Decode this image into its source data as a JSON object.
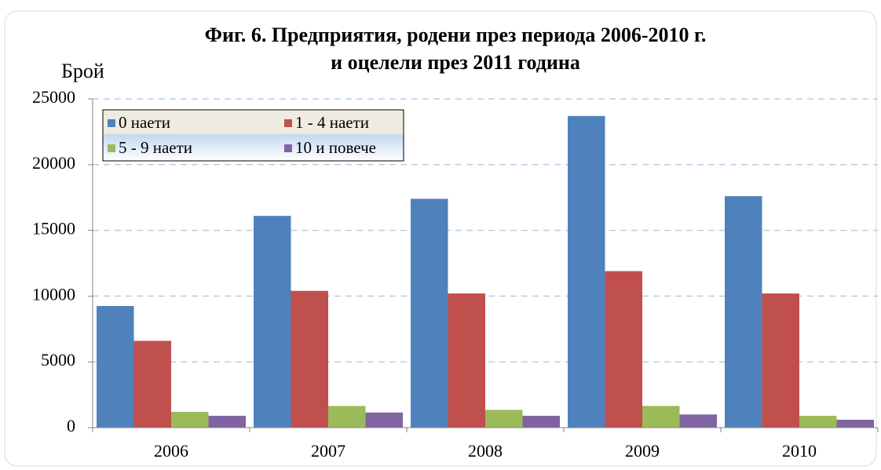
{
  "chart_data": {
    "type": "bar",
    "title": "Фиг. 6. Предприятия, родени през периода 2006-2010 г.",
    "subtitle": "и оцелели през 2011 година",
    "y_label": "Брой",
    "categories": [
      "2006",
      "2007",
      "2008",
      "2009",
      "2010"
    ],
    "series": [
      {
        "name": "0 наети",
        "color": "#4f81bd",
        "values": [
          9250,
          16100,
          17400,
          23700,
          17600
        ]
      },
      {
        "name": "1 - 4 наети",
        "color": "#c0504d",
        "values": [
          6600,
          10400,
          10200,
          11900,
          10200
        ]
      },
      {
        "name": "5 - 9 наети",
        "color": "#9bbb59",
        "values": [
          1200,
          1650,
          1350,
          1650,
          900
        ]
      },
      {
        "name": "10 и повече",
        "color": "#8064a2",
        "values": [
          900,
          1150,
          900,
          1000,
          600
        ]
      }
    ],
    "ylim": [
      0,
      25000
    ],
    "yticks": [
      0,
      5000,
      10000,
      15000,
      20000,
      25000
    ],
    "grid": true
  }
}
